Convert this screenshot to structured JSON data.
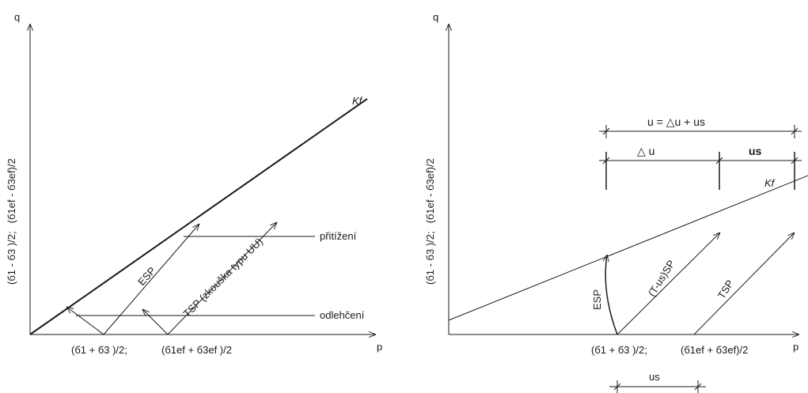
{
  "left": {
    "axis_q": "q",
    "axis_p": "p",
    "ylabel_total": "(б1 - б3 )/2;",
    "ylabel_eff": "(б1ef - б3ef)/2",
    "kf": "Kf",
    "esp": "ESP",
    "tsp": "TSP (zkouška typu UU)",
    "loading": "přitížení",
    "unloading": "odlehčení",
    "p_total": "(б1 + б3 )/2;",
    "p_eff": "(б1ef + б3ef )/2"
  },
  "right": {
    "axis_q": "q",
    "axis_p": "p",
    "ylabel_total": "(б1 - б3 )/2;",
    "ylabel_eff": "(б1ef - б3ef)/2",
    "kf": "Kf",
    "u_total": "u = △u + us",
    "delta_u": "△ u",
    "us": "us",
    "esp": "ESP",
    "tusp": "(T-us)SP",
    "tsp": "TSP",
    "p_total": "(б1 + б3 )/2;",
    "p_eff": "(б1ef + б3ef)/2",
    "us_bottom": "us"
  },
  "colors": {
    "ink": "#1a1a1a",
    "background": "#ffffff"
  }
}
